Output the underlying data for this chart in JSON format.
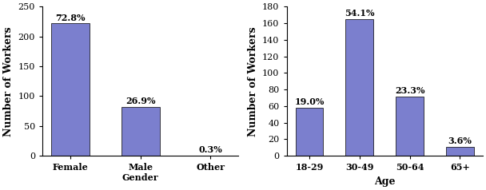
{
  "gender_tick_labels": [
    "Female",
    "Male\nGender",
    "Other"
  ],
  "gender_values": [
    222,
    82,
    1
  ],
  "gender_percentages": [
    "72.8%",
    "26.9%",
    "0.3%"
  ],
  "gender_ylim": [
    0,
    250
  ],
  "gender_yticks": [
    0,
    50,
    100,
    150,
    200,
    250
  ],
  "gender_ylabel": "Number of Workers",
  "age_categories": [
    "18-29",
    "30-49",
    "50-64",
    "65+"
  ],
  "age_values": [
    58,
    165,
    71,
    11
  ],
  "age_percentages": [
    "19.0%",
    "54.1%",
    "23.3%",
    "3.6%"
  ],
  "age_ylim": [
    0,
    180
  ],
  "age_yticks": [
    0,
    20,
    40,
    60,
    80,
    100,
    120,
    140,
    160,
    180
  ],
  "age_xlabel": "Age",
  "age_ylabel": "Number of Workers",
  "bar_color": "#7b7fce",
  "bar_width": 0.55,
  "pct_fontsize": 8,
  "axis_label_fontsize": 9,
  "tick_fontsize": 8,
  "ylabel_fontsize": 9
}
